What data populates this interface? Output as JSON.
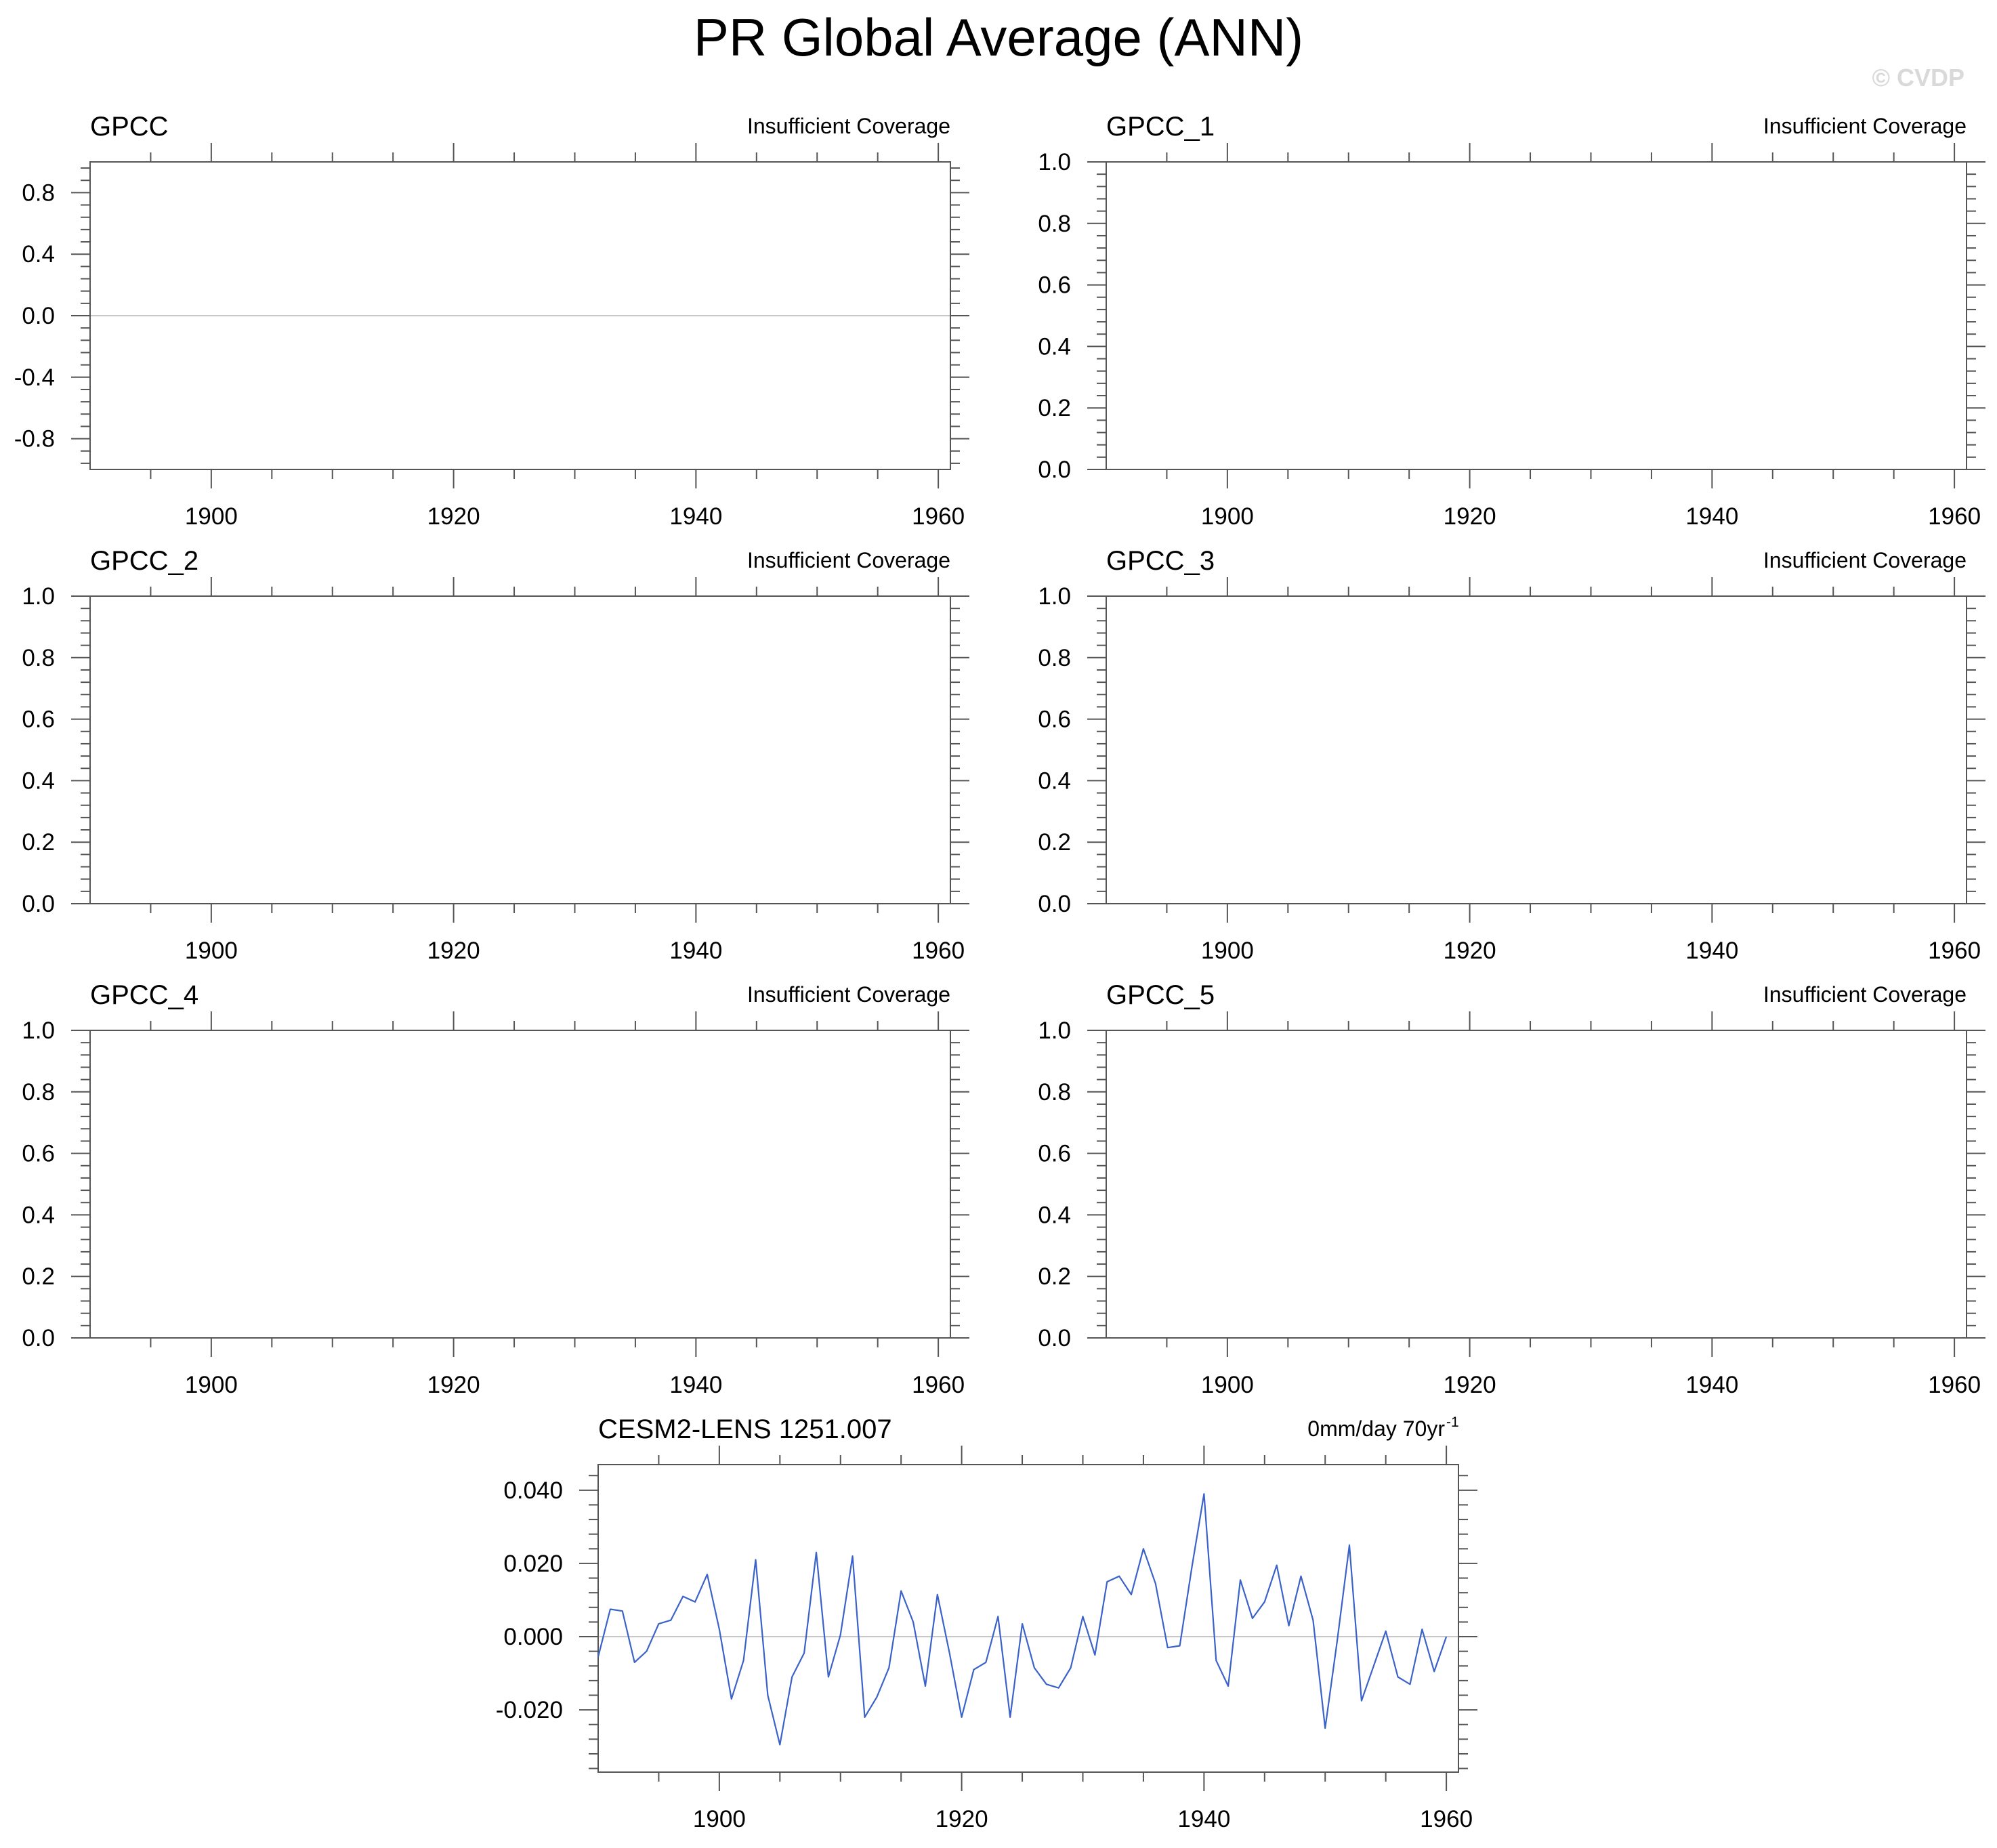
{
  "title": "PR Global Average (ANN)",
  "watermark": "© CVDP",
  "colors": {
    "frame": "#555555",
    "series": "#3a62c9",
    "zero_line": "#c8c8c8",
    "watermark": "#d9d9d9"
  },
  "chart_data": [
    {
      "type": "line",
      "title": "GPCC",
      "annotation": "Insufficient Coverage",
      "xlim": [
        1890,
        1961
      ],
      "ylim": [
        -1,
        1
      ],
      "xticks": [
        1900,
        1920,
        1940,
        1960
      ],
      "yticks": [
        0.8,
        0.4,
        0.0,
        -0.4,
        -0.8
      ],
      "ytick_labels": [
        "0.8",
        "0.4",
        "0.0",
        "-0.4",
        "-0.8"
      ],
      "zero_line": true,
      "series": []
    },
    {
      "type": "line",
      "title": "GPCC_1",
      "annotation": "Insufficient Coverage",
      "xlim": [
        1890,
        1961
      ],
      "ylim": [
        0,
        1
      ],
      "xticks": [
        1900,
        1920,
        1940,
        1960
      ],
      "yticks": [
        1.0,
        0.8,
        0.6,
        0.4,
        0.2,
        0.0
      ],
      "ytick_labels": [
        "1.0",
        "0.8",
        "0.6",
        "0.4",
        "0.2",
        "0.0"
      ],
      "zero_line": false,
      "series": []
    },
    {
      "type": "line",
      "title": "GPCC_2",
      "annotation": "Insufficient Coverage",
      "xlim": [
        1890,
        1961
      ],
      "ylim": [
        0,
        1
      ],
      "xticks": [
        1900,
        1920,
        1940,
        1960
      ],
      "yticks": [
        1.0,
        0.8,
        0.6,
        0.4,
        0.2,
        0.0
      ],
      "ytick_labels": [
        "1.0",
        "0.8",
        "0.6",
        "0.4",
        "0.2",
        "0.0"
      ],
      "zero_line": false,
      "series": []
    },
    {
      "type": "line",
      "title": "GPCC_3",
      "annotation": "Insufficient Coverage",
      "xlim": [
        1890,
        1961
      ],
      "ylim": [
        0,
        1
      ],
      "xticks": [
        1900,
        1920,
        1940,
        1960
      ],
      "yticks": [
        1.0,
        0.8,
        0.6,
        0.4,
        0.2,
        0.0
      ],
      "ytick_labels": [
        "1.0",
        "0.8",
        "0.6",
        "0.4",
        "0.2",
        "0.0"
      ],
      "zero_line": false,
      "series": []
    },
    {
      "type": "line",
      "title": "GPCC_4",
      "annotation": "Insufficient Coverage",
      "xlim": [
        1890,
        1961
      ],
      "ylim": [
        0,
        1
      ],
      "xticks": [
        1900,
        1920,
        1940,
        1960
      ],
      "yticks": [
        1.0,
        0.8,
        0.6,
        0.4,
        0.2,
        0.0
      ],
      "ytick_labels": [
        "1.0",
        "0.8",
        "0.6",
        "0.4",
        "0.2",
        "0.0"
      ],
      "zero_line": false,
      "series": []
    },
    {
      "type": "line",
      "title": "GPCC_5",
      "annotation": "Insufficient Coverage",
      "xlim": [
        1890,
        1961
      ],
      "ylim": [
        0,
        1
      ],
      "xticks": [
        1900,
        1920,
        1940,
        1960
      ],
      "yticks": [
        1.0,
        0.8,
        0.6,
        0.4,
        0.2,
        0.0
      ],
      "ytick_labels": [
        "1.0",
        "0.8",
        "0.6",
        "0.4",
        "0.2",
        "0.0"
      ],
      "zero_line": false,
      "series": []
    },
    {
      "type": "line",
      "title": "CESM2-LENS 1251.007",
      "annotation": "0mm/day 70yr",
      "annotation_sup": "-1",
      "xlim": [
        1890,
        1961
      ],
      "ylim": [
        -0.037,
        0.047
      ],
      "xticks": [
        1900,
        1920,
        1940,
        1960
      ],
      "yticks": [
        0.04,
        0.02,
        0.0,
        -0.02
      ],
      "ytick_labels": [
        "0.040",
        "0.020",
        "0.000",
        "-0.020"
      ],
      "zero_line": true,
      "series": [
        {
          "x": [
            1890,
            1891,
            1892,
            1893,
            1894,
            1895,
            1896,
            1897,
            1898,
            1899,
            1900,
            1901,
            1902,
            1903,
            1904,
            1905,
            1906,
            1907,
            1908,
            1909,
            1910,
            1911,
            1912,
            1913,
            1914,
            1915,
            1916,
            1917,
            1918,
            1919,
            1920,
            1921,
            1922,
            1923,
            1924,
            1925,
            1926,
            1927,
            1928,
            1929,
            1930,
            1931,
            1932,
            1933,
            1934,
            1935,
            1936,
            1937,
            1938,
            1939,
            1940,
            1941,
            1942,
            1943,
            1944,
            1945,
            1946,
            1947,
            1948,
            1949,
            1950,
            1951,
            1952,
            1953,
            1954,
            1955,
            1956,
            1957,
            1958,
            1959,
            1960
          ],
          "values": [
            -0.0055,
            0.0075,
            0.007,
            -0.007,
            -0.004,
            0.0035,
            0.0045,
            0.011,
            0.0095,
            0.017,
            0.002,
            -0.017,
            -0.0065,
            0.021,
            -0.016,
            -0.0295,
            -0.011,
            -0.0045,
            0.023,
            -0.011,
            0.0005,
            0.022,
            -0.022,
            -0.0165,
            -0.0085,
            0.0125,
            0.004,
            -0.0135,
            0.0115,
            -0.0045,
            -0.022,
            -0.009,
            -0.007,
            0.0055,
            -0.022,
            0.0035,
            -0.0085,
            -0.013,
            -0.014,
            -0.0085,
            0.0055,
            -0.005,
            0.015,
            0.0165,
            0.0115,
            0.024,
            0.0145,
            -0.003,
            -0.0025,
            0.019,
            0.039,
            -0.0065,
            -0.0135,
            0.0155,
            0.005,
            0.0095,
            0.0195,
            0.003,
            0.0165,
            0.0045,
            -0.025,
            -0.001,
            0.025,
            -0.0175,
            -0.008,
            0.0015,
            -0.011,
            -0.013,
            0.002,
            -0.0095,
            0.0
          ]
        }
      ]
    }
  ]
}
